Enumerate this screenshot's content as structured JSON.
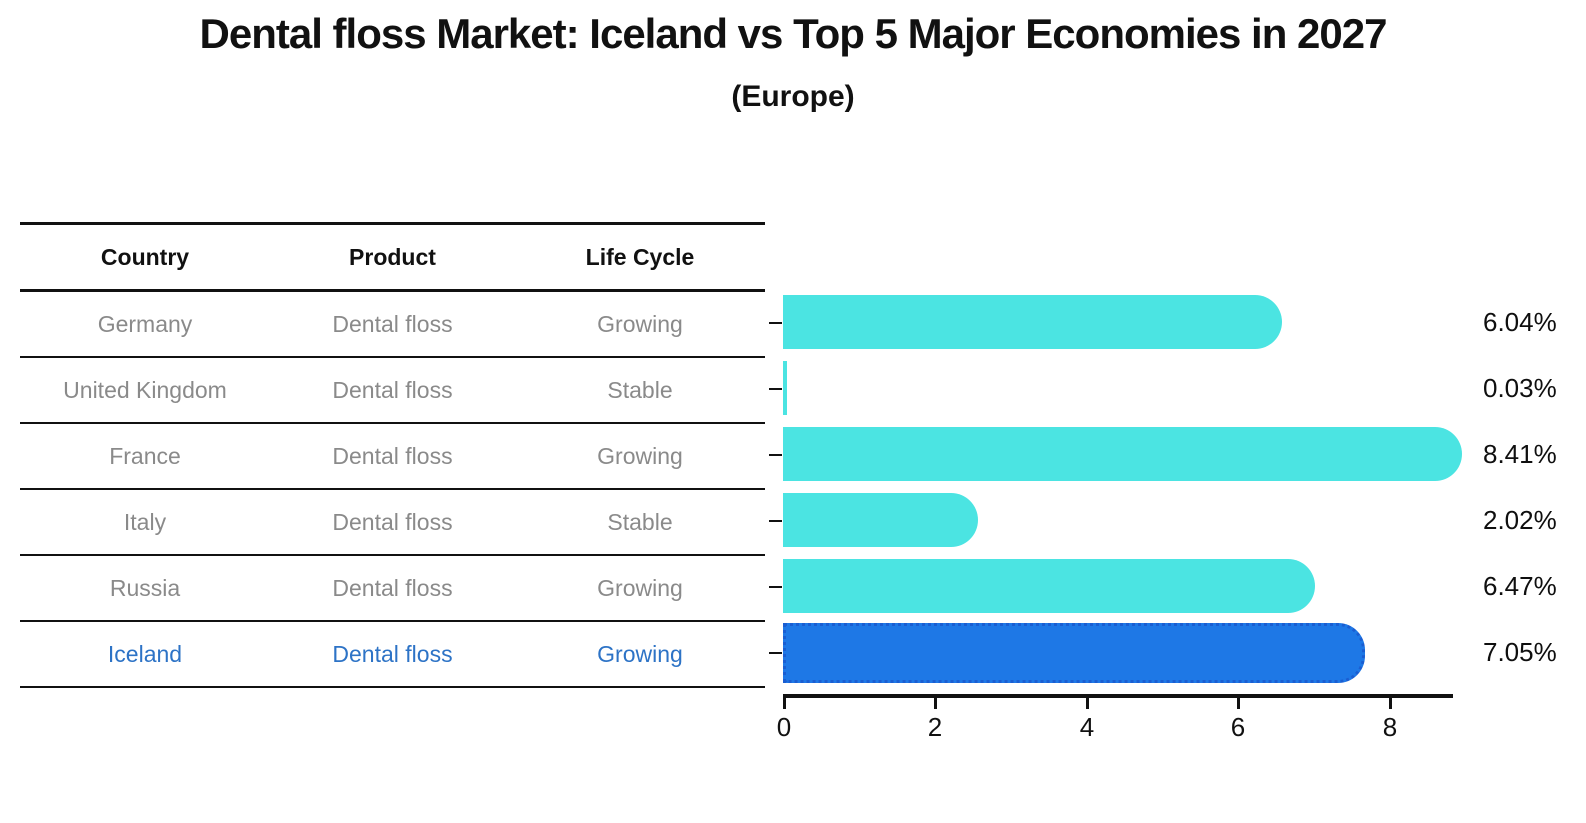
{
  "title": "Dental floss Market: Iceland vs Top 5 Major Economies in 2027",
  "subtitle": "(Europe)",
  "table": {
    "headers": [
      "Country",
      "Product",
      "Life Cycle"
    ],
    "rows": [
      {
        "country": "Germany",
        "product": "Dental floss",
        "life_cycle": "Growing"
      },
      {
        "country": "United Kingdom",
        "product": "Dental floss",
        "life_cycle": "Stable"
      },
      {
        "country": "France",
        "product": "Dental floss",
        "life_cycle": "Growing"
      },
      {
        "country": "Italy",
        "product": "Dental floss",
        "life_cycle": "Stable"
      },
      {
        "country": "Russia",
        "product": "Dental floss",
        "life_cycle": "Growing"
      },
      {
        "country": "Iceland",
        "product": "Dental floss",
        "life_cycle": "Growing"
      }
    ]
  },
  "chart_data": {
    "type": "bar",
    "orientation": "horizontal",
    "categories": [
      "Germany",
      "United Kingdom",
      "France",
      "Italy",
      "Russia",
      "Iceland"
    ],
    "values": [
      6.04,
      0.03,
      8.41,
      2.02,
      6.47,
      7.05
    ],
    "value_labels": [
      "6.04%",
      "0.03%",
      "8.41%",
      "2.02%",
      "6.47%",
      "7.05%"
    ],
    "highlight_index": 5,
    "x_ticks": [
      0,
      2,
      4,
      6,
      8
    ],
    "x_tick_labels": [
      "0",
      "2",
      "4",
      "6",
      "8"
    ],
    "xlim": [
      0,
      8.85
    ],
    "grid": false,
    "legend": "none",
    "colors": {
      "bar": "#4be4e2",
      "highlight_bar": "#1e78e6",
      "highlight_bar_border": "#1a5ed2",
      "highlight_text": "#2d73c6",
      "muted_text": "#8a8a8a",
      "axis": "#111111"
    }
  }
}
